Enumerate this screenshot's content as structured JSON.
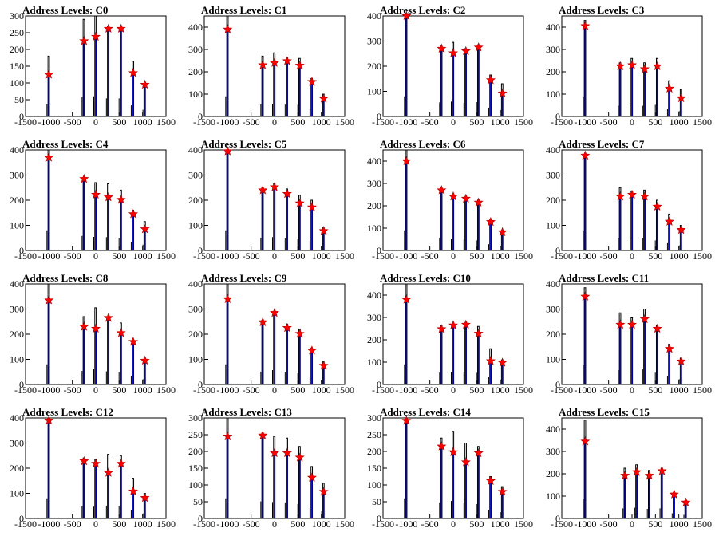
{
  "colors": {
    "hist": "#000000",
    "fit": "#0000cc",
    "marker": "#ff0000",
    "background": "#ffffff"
  },
  "chart_data": [
    {
      "type": "bar",
      "title": "Address Levels: C0",
      "xlim": [
        -1500,
        1500
      ],
      "ylim": [
        0,
        300
      ],
      "yticks": [
        0,
        50,
        100,
        150,
        200,
        250,
        300
      ],
      "xticks": [
        -1500,
        -1000,
        -500,
        0,
        500,
        1000,
        1500
      ],
      "peaks": [
        {
          "x": -1000,
          "hist": 180,
          "fit": 130,
          "marker": 125
        },
        {
          "x": -250,
          "hist": 290,
          "fit": 230,
          "marker": 225
        },
        {
          "x": 0,
          "hist": 300,
          "fit": 240,
          "marker": 238
        },
        {
          "x": 270,
          "hist": 270,
          "fit": 262,
          "marker": 262
        },
        {
          "x": 540,
          "hist": 270,
          "fit": 262,
          "marker": 262
        },
        {
          "x": 800,
          "hist": 165,
          "fit": 135,
          "marker": 130
        },
        {
          "x": 1050,
          "hist": 100,
          "fit": 97,
          "marker": 95
        }
      ]
    },
    {
      "type": "bar",
      "title": "Address Levels: C1",
      "xlim": [
        -1500,
        1500
      ],
      "ylim": [
        0,
        450
      ],
      "yticks": [
        0,
        100,
        200,
        300,
        400
      ],
      "xticks": [
        -1500,
        -1000,
        -500,
        0,
        500,
        1000,
        1500
      ],
      "peaks": [
        {
          "x": -1000,
          "hist": 450,
          "fit": 395,
          "marker": 390
        },
        {
          "x": -250,
          "hist": 270,
          "fit": 235,
          "marker": 230
        },
        {
          "x": 0,
          "hist": 285,
          "fit": 245,
          "marker": 240
        },
        {
          "x": 270,
          "hist": 265,
          "fit": 250,
          "marker": 248
        },
        {
          "x": 540,
          "hist": 260,
          "fit": 232,
          "marker": 228
        },
        {
          "x": 800,
          "hist": 170,
          "fit": 158,
          "marker": 155
        },
        {
          "x": 1050,
          "hist": 100,
          "fit": 85,
          "marker": 80
        }
      ]
    },
    {
      "type": "bar",
      "title": "Address Levels: C2",
      "xlim": [
        -1500,
        1500
      ],
      "ylim": [
        0,
        400
      ],
      "yticks": [
        0,
        100,
        200,
        300,
        400
      ],
      "xticks": [
        -1500,
        -1000,
        -500,
        0,
        500,
        1000,
        1500
      ],
      "peaks": [
        {
          "x": -1000,
          "hist": 400,
          "fit": 400,
          "marker": 400
        },
        {
          "x": -250,
          "hist": 280,
          "fit": 272,
          "marker": 270
        },
        {
          "x": 0,
          "hist": 295,
          "fit": 255,
          "marker": 252
        },
        {
          "x": 270,
          "hist": 270,
          "fit": 262,
          "marker": 260
        },
        {
          "x": 540,
          "hist": 285,
          "fit": 275,
          "marker": 275
        },
        {
          "x": 800,
          "hist": 165,
          "fit": 148,
          "marker": 145
        },
        {
          "x": 1050,
          "hist": 130,
          "fit": 95,
          "marker": 92
        }
      ]
    },
    {
      "type": "bar",
      "title": "Address Levels: C3",
      "xlim": [
        -1500,
        1500
      ],
      "ylim": [
        0,
        450
      ],
      "yticks": [
        0,
        100,
        200,
        300,
        400
      ],
      "xticks": [
        -1500,
        -1000,
        -500,
        0,
        500,
        1000,
        1500
      ],
      "peaks": [
        {
          "x": -1000,
          "hist": 430,
          "fit": 410,
          "marker": 405
        },
        {
          "x": -250,
          "hist": 240,
          "fit": 228,
          "marker": 225
        },
        {
          "x": 0,
          "hist": 260,
          "fit": 232,
          "marker": 230
        },
        {
          "x": 270,
          "hist": 240,
          "fit": 215,
          "marker": 212
        },
        {
          "x": 540,
          "hist": 260,
          "fit": 228,
          "marker": 225
        },
        {
          "x": 800,
          "hist": 160,
          "fit": 130,
          "marker": 125
        },
        {
          "x": 1050,
          "hist": 120,
          "fit": 85,
          "marker": 82
        }
      ]
    },
    {
      "type": "bar",
      "title": "Address Levels: C4",
      "xlim": [
        -1500,
        1500
      ],
      "ylim": [
        0,
        400
      ],
      "yticks": [
        0,
        100,
        200,
        300,
        400
      ],
      "xticks": [
        -1500,
        -1000,
        -500,
        0,
        500,
        1000,
        1500
      ],
      "peaks": [
        {
          "x": -1000,
          "hist": 400,
          "fit": 375,
          "marker": 370
        },
        {
          "x": -250,
          "hist": 290,
          "fit": 285,
          "marker": 285
        },
        {
          "x": 0,
          "hist": 270,
          "fit": 225,
          "marker": 222
        },
        {
          "x": 270,
          "hist": 265,
          "fit": 215,
          "marker": 212
        },
        {
          "x": 540,
          "hist": 240,
          "fit": 205,
          "marker": 202
        },
        {
          "x": 800,
          "hist": 160,
          "fit": 148,
          "marker": 145
        },
        {
          "x": 1050,
          "hist": 115,
          "fit": 90,
          "marker": 85
        }
      ]
    },
    {
      "type": "bar",
      "title": "Address Levels: C5",
      "xlim": [
        -1500,
        1500
      ],
      "ylim": [
        0,
        400
      ],
      "yticks": [
        0,
        100,
        200,
        300,
        400
      ],
      "xticks": [
        -1500,
        -1000,
        -500,
        0,
        500,
        1000,
        1500
      ],
      "peaks": [
        {
          "x": -1000,
          "hist": 400,
          "fit": 395,
          "marker": 395
        },
        {
          "x": -250,
          "hist": 250,
          "fit": 242,
          "marker": 240
        },
        {
          "x": 0,
          "hist": 265,
          "fit": 255,
          "marker": 252
        },
        {
          "x": 270,
          "hist": 245,
          "fit": 228,
          "marker": 225
        },
        {
          "x": 540,
          "hist": 220,
          "fit": 190,
          "marker": 188
        },
        {
          "x": 800,
          "hist": 200,
          "fit": 175,
          "marker": 172
        },
        {
          "x": 1050,
          "hist": 90,
          "fit": 80,
          "marker": 78
        }
      ]
    },
    {
      "type": "bar",
      "title": "Address Levels: C6",
      "xlim": [
        -1500,
        1500
      ],
      "ylim": [
        0,
        450
      ],
      "yticks": [
        0,
        100,
        200,
        300,
        400
      ],
      "xticks": [
        -1500,
        -1000,
        -500,
        0,
        500,
        1000,
        1500
      ],
      "peaks": [
        {
          "x": -1000,
          "hist": 450,
          "fit": 405,
          "marker": 400
        },
        {
          "x": -250,
          "hist": 280,
          "fit": 275,
          "marker": 270
        },
        {
          "x": 0,
          "hist": 250,
          "fit": 245,
          "marker": 242
        },
        {
          "x": 270,
          "hist": 240,
          "fit": 235,
          "marker": 232
        },
        {
          "x": 540,
          "hist": 225,
          "fit": 220,
          "marker": 215
        },
        {
          "x": 800,
          "hist": 140,
          "fit": 132,
          "marker": 128
        },
        {
          "x": 1050,
          "hist": 90,
          "fit": 85,
          "marker": 82
        }
      ]
    },
    {
      "type": "bar",
      "title": "Address Levels: C7",
      "xlim": [
        -1500,
        1500
      ],
      "ylim": [
        0,
        400
      ],
      "yticks": [
        0,
        100,
        200,
        300,
        400
      ],
      "xticks": [
        -1500,
        -1000,
        -500,
        0,
        500,
        1000,
        1500
      ],
      "peaks": [
        {
          "x": -1000,
          "hist": 380,
          "fit": 380,
          "marker": 378
        },
        {
          "x": -250,
          "hist": 250,
          "fit": 218,
          "marker": 215
        },
        {
          "x": 0,
          "hist": 235,
          "fit": 225,
          "marker": 222
        },
        {
          "x": 270,
          "hist": 240,
          "fit": 218,
          "marker": 215
        },
        {
          "x": 540,
          "hist": 200,
          "fit": 178,
          "marker": 175
        },
        {
          "x": 800,
          "hist": 145,
          "fit": 118,
          "marker": 115
        },
        {
          "x": 1050,
          "hist": 100,
          "fit": 85,
          "marker": 82
        }
      ]
    },
    {
      "type": "bar",
      "title": "Address Levels: C8",
      "xlim": [
        -1500,
        1500
      ],
      "ylim": [
        0,
        400
      ],
      "yticks": [
        0,
        100,
        200,
        300,
        400
      ],
      "xticks": [
        -1500,
        -1000,
        -500,
        0,
        500,
        1000,
        1500
      ],
      "peaks": [
        {
          "x": -1000,
          "hist": 400,
          "fit": 340,
          "marker": 335
        },
        {
          "x": -250,
          "hist": 270,
          "fit": 232,
          "marker": 230
        },
        {
          "x": 0,
          "hist": 305,
          "fit": 225,
          "marker": 222
        },
        {
          "x": 270,
          "hist": 260,
          "fit": 265,
          "marker": 265
        },
        {
          "x": 540,
          "hist": 245,
          "fit": 208,
          "marker": 205
        },
        {
          "x": 800,
          "hist": 170,
          "fit": 172,
          "marker": 170
        },
        {
          "x": 1050,
          "hist": 105,
          "fit": 95,
          "marker": 95
        }
      ]
    },
    {
      "type": "bar",
      "title": "Address Levels: C9",
      "xlim": [
        -1500,
        1500
      ],
      "ylim": [
        0,
        400
      ],
      "yticks": [
        0,
        100,
        200,
        300,
        400
      ],
      "xticks": [
        -1500,
        -1000,
        -500,
        0,
        500,
        1000,
        1500
      ],
      "peaks": [
        {
          "x": -1000,
          "hist": 400,
          "fit": 345,
          "marker": 340
        },
        {
          "x": -250,
          "hist": 255,
          "fit": 250,
          "marker": 248
        },
        {
          "x": 0,
          "hist": 285,
          "fit": 285,
          "marker": 285
        },
        {
          "x": 270,
          "hist": 240,
          "fit": 228,
          "marker": 225
        },
        {
          "x": 540,
          "hist": 220,
          "fit": 205,
          "marker": 202
        },
        {
          "x": 800,
          "hist": 145,
          "fit": 138,
          "marker": 135
        },
        {
          "x": 1050,
          "hist": 90,
          "fit": 78,
          "marker": 75
        }
      ]
    },
    {
      "type": "bar",
      "title": "Address Levels: C10",
      "xlim": [
        -1500,
        1500
      ],
      "ylim": [
        0,
        450
      ],
      "yticks": [
        0,
        100,
        200,
        300,
        400
      ],
      "xticks": [
        -1500,
        -1000,
        -500,
        0,
        500,
        1000,
        1500
      ],
      "peaks": [
        {
          "x": -1000,
          "hist": 450,
          "fit": 385,
          "marker": 380
        },
        {
          "x": -250,
          "hist": 265,
          "fit": 250,
          "marker": 248
        },
        {
          "x": 0,
          "hist": 270,
          "fit": 268,
          "marker": 265
        },
        {
          "x": 270,
          "hist": 275,
          "fit": 270,
          "marker": 268
        },
        {
          "x": 540,
          "hist": 260,
          "fit": 230,
          "marker": 228
        },
        {
          "x": 800,
          "hist": 160,
          "fit": 110,
          "marker": 105
        },
        {
          "x": 1050,
          "hist": 110,
          "fit": 100,
          "marker": 98
        }
      ]
    },
    {
      "type": "bar",
      "title": "Address Levels: C11",
      "xlim": [
        -1500,
        1500
      ],
      "ylim": [
        0,
        400
      ],
      "yticks": [
        0,
        100,
        200,
        300,
        400
      ],
      "xticks": [
        -1500,
        -1000,
        -500,
        0,
        500,
        1000,
        1500
      ],
      "peaks": [
        {
          "x": -1000,
          "hist": 385,
          "fit": 355,
          "marker": 350
        },
        {
          "x": -250,
          "hist": 285,
          "fit": 240,
          "marker": 238
        },
        {
          "x": 0,
          "hist": 265,
          "fit": 240,
          "marker": 238
        },
        {
          "x": 270,
          "hist": 300,
          "fit": 262,
          "marker": 260
        },
        {
          "x": 540,
          "hist": 235,
          "fit": 225,
          "marker": 222
        },
        {
          "x": 800,
          "hist": 160,
          "fit": 145,
          "marker": 142
        },
        {
          "x": 1050,
          "hist": 105,
          "fit": 95,
          "marker": 92
        }
      ]
    },
    {
      "type": "bar",
      "title": "Address Levels: C12",
      "xlim": [
        -1500,
        1500
      ],
      "ylim": [
        0,
        400
      ],
      "yticks": [
        0,
        100,
        200,
        300,
        400
      ],
      "xticks": [
        -1500,
        -1000,
        -500,
        0,
        500,
        1000,
        1500
      ],
      "peaks": [
        {
          "x": -1000,
          "hist": 400,
          "fit": 395,
          "marker": 390
        },
        {
          "x": -250,
          "hist": 240,
          "fit": 230,
          "marker": 228
        },
        {
          "x": 0,
          "hist": 235,
          "fit": 220,
          "marker": 218
        },
        {
          "x": 270,
          "hist": 255,
          "fit": 185,
          "marker": 182
        },
        {
          "x": 540,
          "hist": 250,
          "fit": 220,
          "marker": 218
        },
        {
          "x": 800,
          "hist": 160,
          "fit": 110,
          "marker": 108
        },
        {
          "x": 1050,
          "hist": 100,
          "fit": 85,
          "marker": 82
        }
      ]
    },
    {
      "type": "bar",
      "title": "Address Levels: C13",
      "xlim": [
        -1500,
        1500
      ],
      "ylim": [
        0,
        300
      ],
      "yticks": [
        0,
        50,
        100,
        150,
        200,
        250,
        300
      ],
      "xticks": [
        -1500,
        -1000,
        -500,
        0,
        500,
        1000,
        1500
      ],
      "peaks": [
        {
          "x": -1000,
          "hist": 300,
          "fit": 248,
          "marker": 245
        },
        {
          "x": -250,
          "hist": 255,
          "fit": 250,
          "marker": 248
        },
        {
          "x": 0,
          "hist": 245,
          "fit": 198,
          "marker": 195
        },
        {
          "x": 270,
          "hist": 240,
          "fit": 195,
          "marker": 195
        },
        {
          "x": 540,
          "hist": 215,
          "fit": 185,
          "marker": 182
        },
        {
          "x": 800,
          "hist": 155,
          "fit": 125,
          "marker": 122
        },
        {
          "x": 1050,
          "hist": 105,
          "fit": 82,
          "marker": 80
        }
      ]
    },
    {
      "type": "bar",
      "title": "Address Levels: C14",
      "xlim": [
        -1500,
        1500
      ],
      "ylim": [
        0,
        300
      ],
      "yticks": [
        0,
        50,
        100,
        150,
        200,
        250,
        300
      ],
      "xticks": [
        -1500,
        -1000,
        -500,
        0,
        500,
        1000,
        1500
      ],
      "peaks": [
        {
          "x": -1000,
          "hist": 300,
          "fit": 295,
          "marker": 292
        },
        {
          "x": -250,
          "hist": 240,
          "fit": 218,
          "marker": 215
        },
        {
          "x": 0,
          "hist": 260,
          "fit": 202,
          "marker": 198
        },
        {
          "x": 270,
          "hist": 225,
          "fit": 170,
          "marker": 168
        },
        {
          "x": 540,
          "hist": 215,
          "fit": 198,
          "marker": 195
        },
        {
          "x": 800,
          "hist": 125,
          "fit": 115,
          "marker": 112
        },
        {
          "x": 1050,
          "hist": 95,
          "fit": 82,
          "marker": 80
        }
      ]
    },
    {
      "type": "bar",
      "title": "Address Levels: C15",
      "xlim": [
        -1500,
        1500
      ],
      "ylim": [
        0,
        450
      ],
      "yticks": [
        0,
        100,
        200,
        300,
        400
      ],
      "xticks": [
        -1500,
        -1000,
        -500,
        0,
        500,
        1000,
        1500
      ],
      "peaks": [
        {
          "x": -1000,
          "hist": 440,
          "fit": 350,
          "marker": 345
        },
        {
          "x": -150,
          "hist": 225,
          "fit": 195,
          "marker": 192
        },
        {
          "x": 100,
          "hist": 240,
          "fit": 210,
          "marker": 208
        },
        {
          "x": 370,
          "hist": 215,
          "fit": 195,
          "marker": 192
        },
        {
          "x": 640,
          "hist": 225,
          "fit": 215,
          "marker": 212
        },
        {
          "x": 900,
          "hist": 115,
          "fit": 110,
          "marker": 108
        },
        {
          "x": 1150,
          "hist": 80,
          "fit": 75,
          "marker": 72
        }
      ]
    }
  ]
}
